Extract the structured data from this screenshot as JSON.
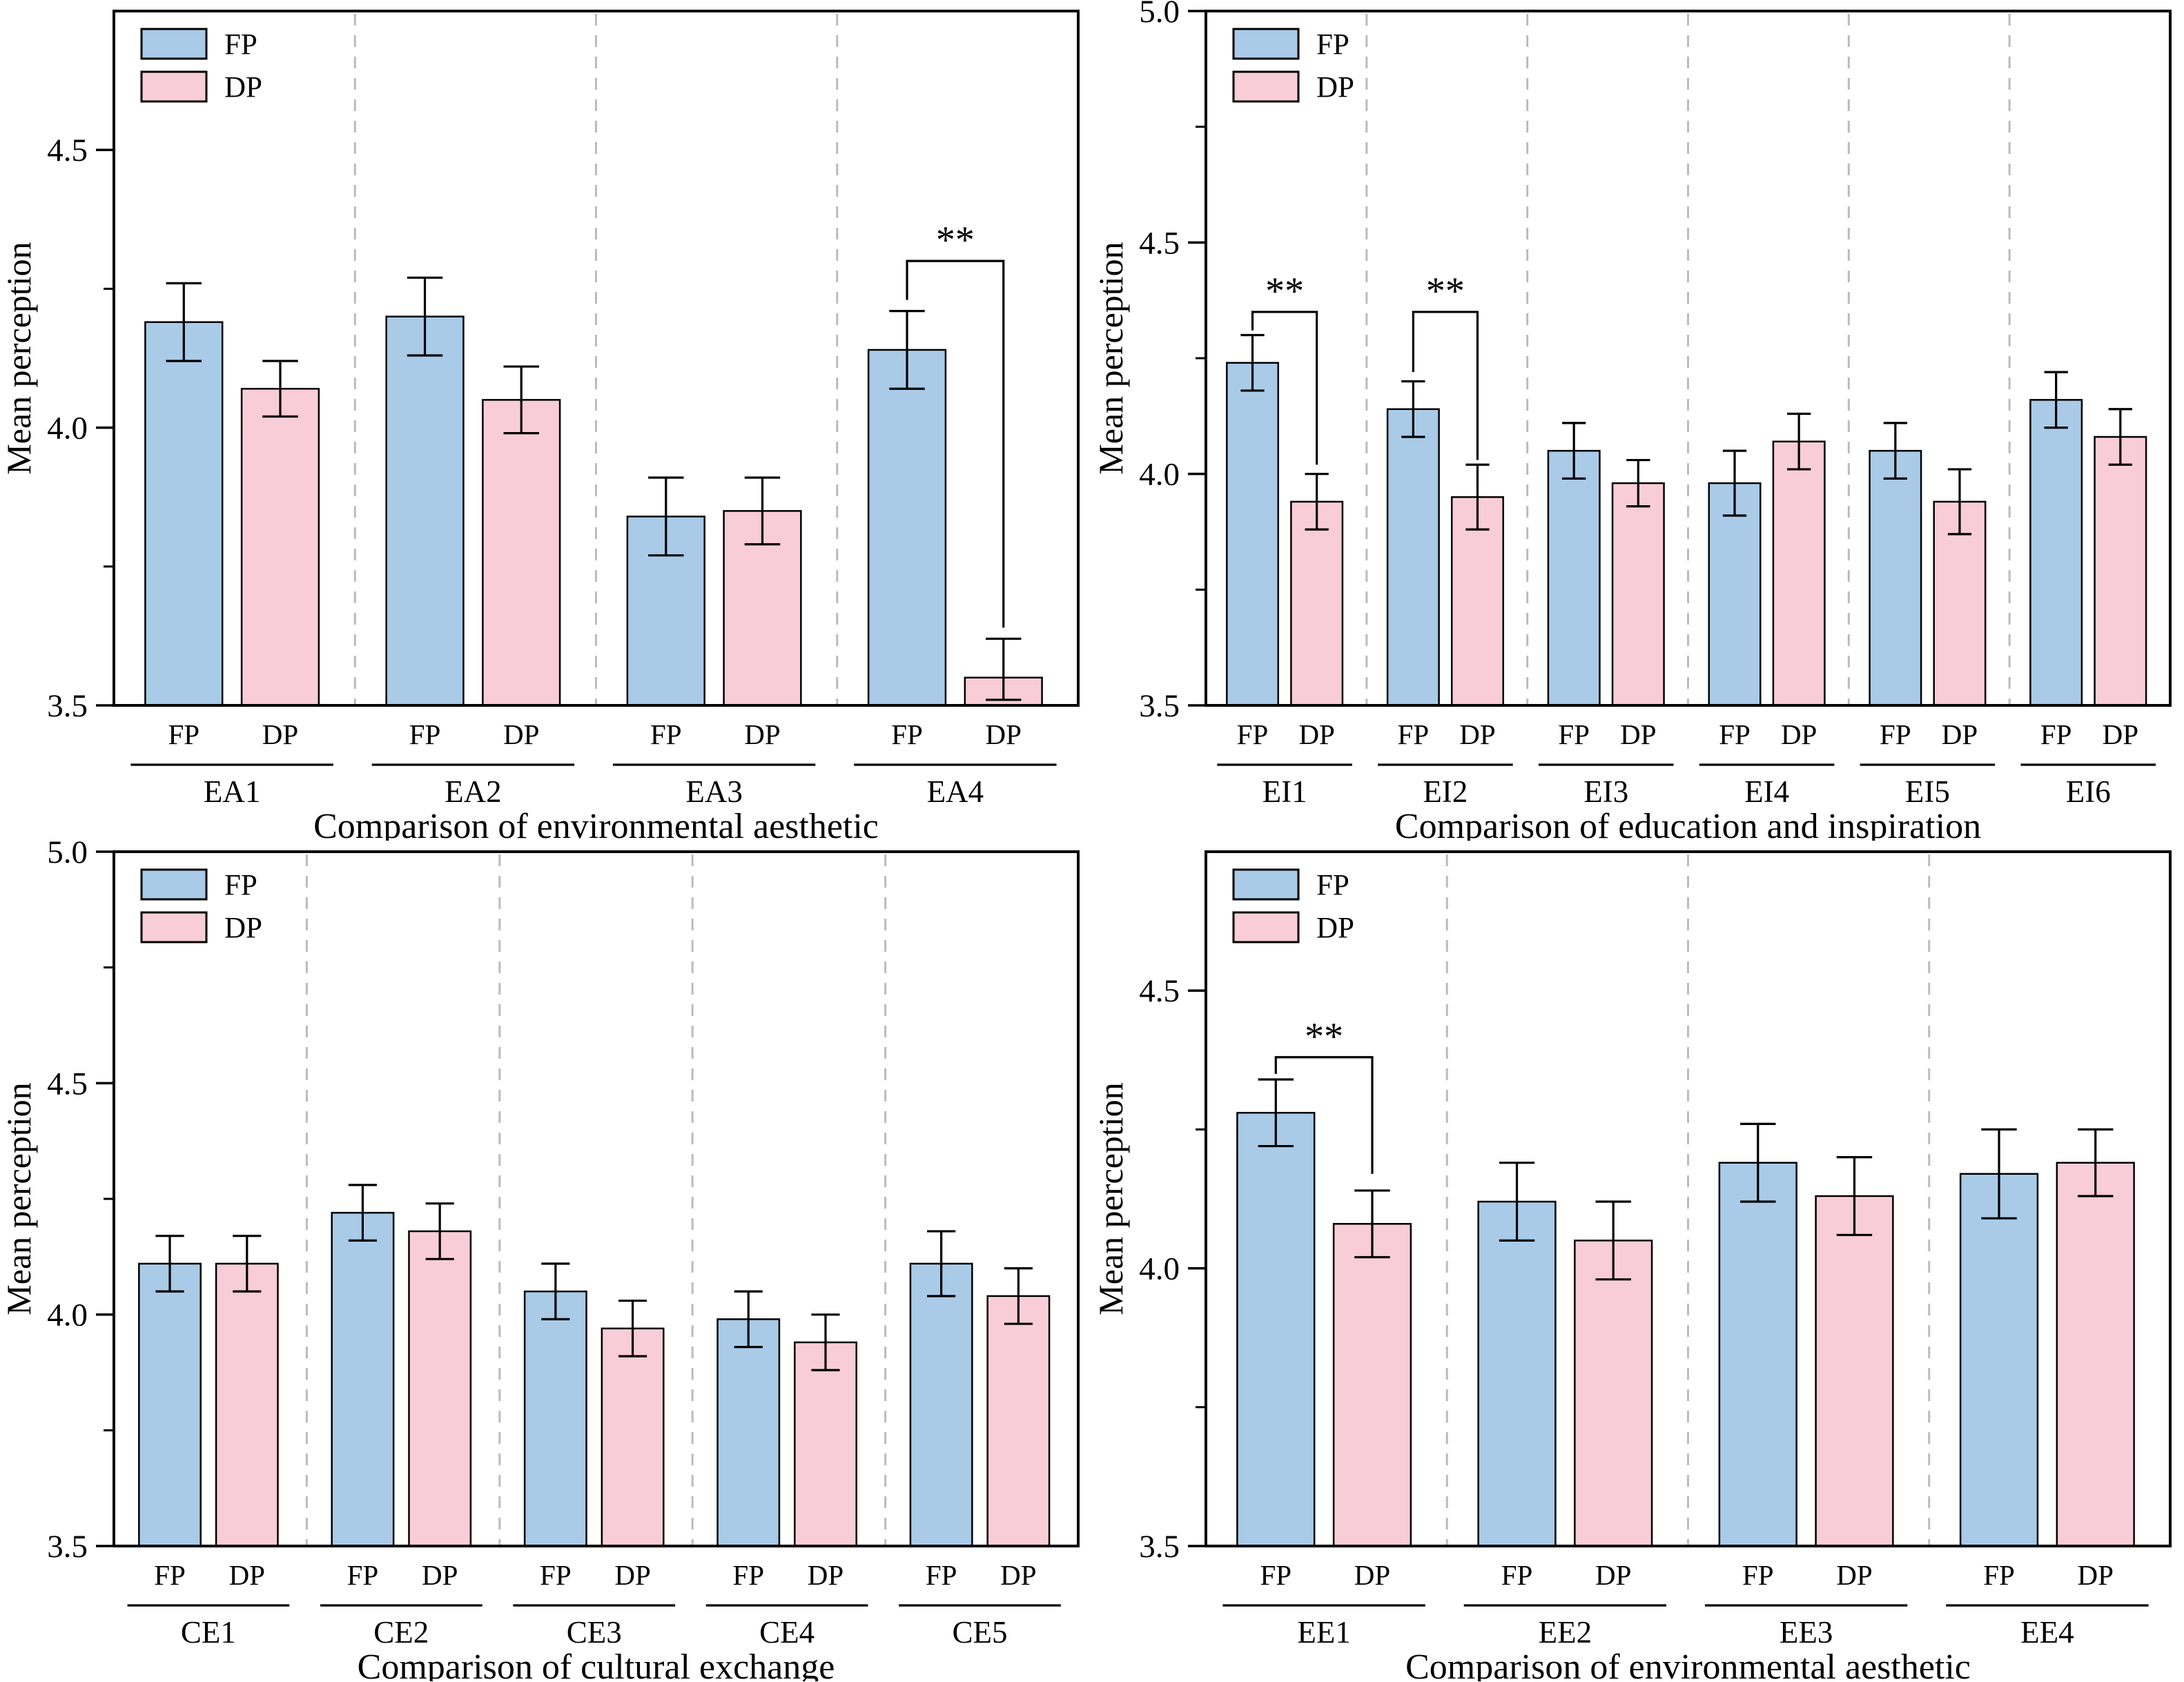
{
  "figure_title": "",
  "legend": {
    "items": [
      {
        "name": "FP"
      },
      {
        "name": "DP"
      }
    ]
  },
  "colors": {
    "fp_fill": "#A9CBE8",
    "dp_fill": "#F9CDD7",
    "bar_stroke": "#000000",
    "error_stroke": "#000000",
    "separator": "#BBBBBB",
    "axis": "#000000",
    "background": "#FFFFFF"
  },
  "chart_data": [
    {
      "type": "bar",
      "id": "EA",
      "title": "Comparison of environmental aesthetic",
      "ylabel": "Mean perception",
      "ylim": [
        3.5,
        4.75
      ],
      "yticks": [
        3.5,
        4.0,
        4.5
      ],
      "ytick_labels": [
        "3.5",
        "4.0",
        "4.5"
      ],
      "minor_yticks": [
        3.75,
        4.25
      ],
      "grid": false,
      "legend_position": "top-left",
      "categories": [
        "EA1",
        "EA2",
        "EA3",
        "EA4"
      ],
      "bar_sublabels": [
        "FP",
        "DP"
      ],
      "series": [
        {
          "name": "FP",
          "values": [
            4.19,
            4.2,
            3.84,
            4.14
          ],
          "errors": [
            0.07,
            0.07,
            0.07,
            0.07
          ]
        },
        {
          "name": "DP",
          "values": [
            4.07,
            4.05,
            3.85,
            3.55
          ],
          "errors": [
            0.05,
            0.06,
            0.06,
            0.07
          ]
        }
      ],
      "significance": [
        {
          "category": "EA4",
          "label": "**",
          "y_top": 4.3,
          "left_drop_to": 4.23,
          "right_drop_to": 3.64
        }
      ]
    },
    {
      "type": "bar",
      "id": "EI",
      "title": "Comparison of education and inspiration",
      "ylabel": "Mean perception",
      "ylim": [
        3.5,
        5.0
      ],
      "yticks": [
        3.5,
        4.0,
        4.5,
        5.0
      ],
      "ytick_labels": [
        "3.5",
        "4.0",
        "4.5",
        "5.0"
      ],
      "minor_yticks": [
        3.75,
        4.25,
        4.75
      ],
      "grid": false,
      "legend_position": "top-left",
      "categories": [
        "EI1",
        "EI2",
        "EI3",
        "EI4",
        "EI5",
        "EI6"
      ],
      "bar_sublabels": [
        "FP",
        "DP"
      ],
      "series": [
        {
          "name": "FP",
          "values": [
            4.24,
            4.14,
            4.05,
            3.98,
            4.05,
            4.16
          ],
          "errors": [
            0.06,
            0.06,
            0.06,
            0.07,
            0.06,
            0.06
          ]
        },
        {
          "name": "DP",
          "values": [
            3.94,
            3.95,
            3.98,
            4.07,
            3.94,
            4.08
          ],
          "errors": [
            0.06,
            0.07,
            0.05,
            0.06,
            0.07,
            0.06
          ]
        }
      ],
      "significance": [
        {
          "category": "EI1",
          "label": "**",
          "y_top": 4.35,
          "left_drop_to": 4.31,
          "right_drop_to": 4.02
        },
        {
          "category": "EI2",
          "label": "**",
          "y_top": 4.35,
          "left_drop_to": 4.22,
          "right_drop_to": 4.03
        }
      ]
    },
    {
      "type": "bar",
      "id": "CE",
      "title": "Comparison of cultural exchange",
      "ylabel": "Mean perception",
      "ylim": [
        3.5,
        5.0
      ],
      "yticks": [
        3.5,
        4.0,
        4.5,
        5.0
      ],
      "ytick_labels": [
        "3.5",
        "4.0",
        "4.5",
        "5.0"
      ],
      "minor_yticks": [
        3.75,
        4.25,
        4.75
      ],
      "grid": false,
      "legend_position": "top-left",
      "categories": [
        "CE1",
        "CE2",
        "CE3",
        "CE4",
        "CE5"
      ],
      "bar_sublabels": [
        "FP",
        "DP"
      ],
      "series": [
        {
          "name": "FP",
          "values": [
            4.11,
            4.22,
            4.05,
            3.99,
            4.11
          ],
          "errors": [
            0.06,
            0.06,
            0.06,
            0.06,
            0.07
          ]
        },
        {
          "name": "DP",
          "values": [
            4.11,
            4.18,
            3.97,
            3.94,
            4.04
          ],
          "errors": [
            0.06,
            0.06,
            0.06,
            0.06,
            0.06
          ]
        }
      ],
      "significance": []
    },
    {
      "type": "bar",
      "id": "EE",
      "title": "Comparison of environmental aesthetic",
      "ylabel": "Mean perception",
      "ylim": [
        3.5,
        4.75
      ],
      "yticks": [
        3.5,
        4.0,
        4.5
      ],
      "ytick_labels": [
        "3.5",
        "4.0",
        "4.5"
      ],
      "minor_yticks": [
        3.75,
        4.25
      ],
      "grid": false,
      "legend_position": "top-left",
      "categories": [
        "EE1",
        "EE2",
        "EE3",
        "EE4"
      ],
      "bar_sublabels": [
        "FP",
        "DP"
      ],
      "series": [
        {
          "name": "FP",
          "values": [
            4.28,
            4.12,
            4.19,
            4.17
          ],
          "errors": [
            0.06,
            0.07,
            0.07,
            0.08
          ]
        },
        {
          "name": "DP",
          "values": [
            4.08,
            4.05,
            4.13,
            4.19
          ],
          "errors": [
            0.06,
            0.07,
            0.07,
            0.06
          ]
        }
      ],
      "significance": [
        {
          "category": "EE1",
          "label": "**",
          "y_top": 4.38,
          "left_drop_to": 4.35,
          "right_drop_to": 4.17
        }
      ]
    }
  ]
}
